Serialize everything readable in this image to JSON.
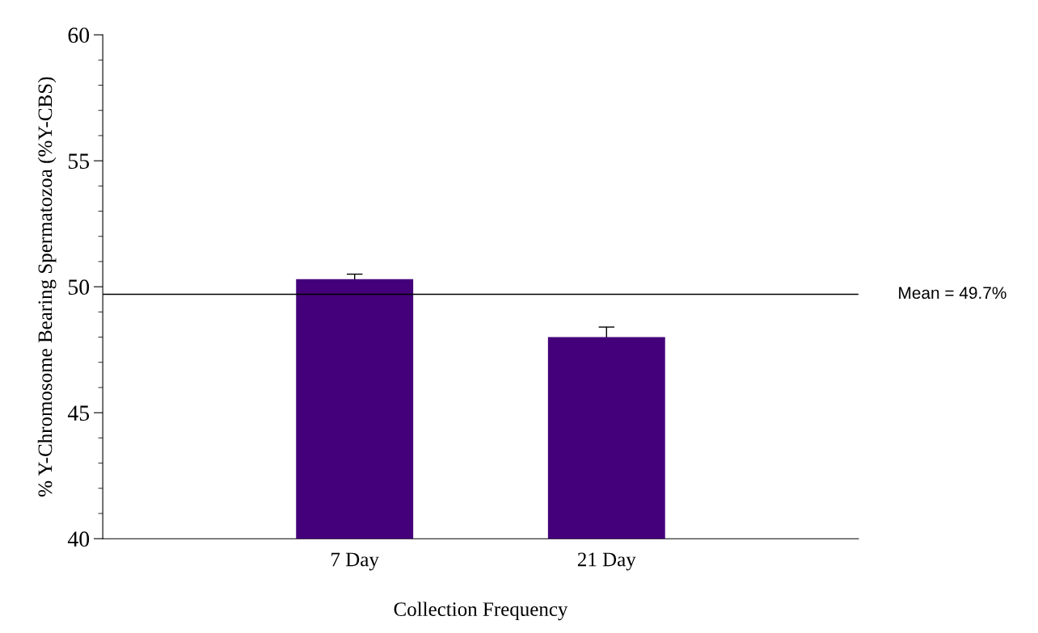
{
  "chart_data": {
    "type": "bar",
    "categories": [
      "7 Day",
      "21 Day"
    ],
    "values": [
      50.3,
      48.0
    ],
    "errors": [
      0.2,
      0.4
    ],
    "color": "#44007a",
    "xlabel": "Collection Frequency",
    "ylabel": "% Y-Chromosome Bearing Spermatozoa (%Y-CBS)",
    "ylim": [
      40,
      60
    ],
    "yticks": [
      40,
      {
        "value": 41,
        "label": null
      },
      {
        "value": 42,
        "label": null
      },
      {
        "value": 43,
        "label": null
      },
      {
        "value": 44,
        "label": null
      },
      45,
      {
        "value": 46,
        "label": null
      },
      {
        "value": 47,
        "label": null
      },
      {
        "value": 48,
        "label": null
      },
      {
        "value": 49,
        "label": null
      },
      50,
      {
        "value": 51,
        "label": null
      },
      {
        "value": 52,
        "label": null
      },
      {
        "value": 53,
        "label": null
      },
      {
        "value": 54,
        "label": null
      },
      55,
      {
        "value": 56,
        "label": null
      },
      {
        "value": 57,
        "label": null
      },
      {
        "value": 58,
        "label": null
      },
      {
        "value": 59,
        "label": null
      },
      60
    ],
    "ref_lines": [
      {
        "axis": "y",
        "value": 49.7,
        "label": "Mean = 49.7%",
        "color": "#000000"
      }
    ],
    "grid": false,
    "legend": false
  }
}
